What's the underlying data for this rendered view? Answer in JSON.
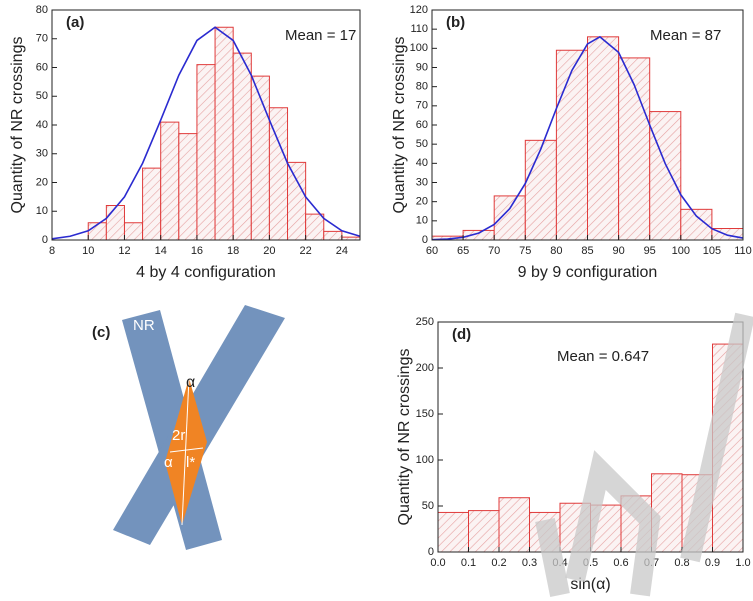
{
  "chart_data": [
    {
      "type": "histogram",
      "label": "(a)",
      "annotation": "Mean = 17",
      "xlabel": "4 by 4 configuration",
      "ylabel": "Quantity of NR crossings",
      "bins": [
        10,
        11,
        12,
        13,
        14,
        15,
        16,
        17,
        18,
        19,
        20,
        21,
        22,
        23,
        24,
        25
      ],
      "values": [
        6,
        12,
        6,
        25,
        41,
        37,
        61,
        74,
        65,
        57,
        46,
        27,
        9,
        3,
        1
      ],
      "color": "#e03a3a",
      "fit": {
        "x": [
          8,
          9,
          10,
          11,
          12,
          13,
          14,
          15,
          16,
          17,
          18,
          19,
          20,
          21,
          22,
          23,
          24,
          25
        ],
        "values": [
          0.4,
          1.3,
          3.2,
          7.5,
          15.0,
          26.7,
          41.7,
          57.3,
          69.4,
          74,
          69.4,
          57.3,
          41.7,
          26.7,
          15.0,
          7.5,
          3.2,
          1.3
        ],
        "color": "#2b2bd0"
      },
      "xlim": [
        8,
        25
      ],
      "xticks": [
        8,
        10,
        12,
        14,
        16,
        18,
        20,
        22,
        24
      ],
      "ylim": [
        0,
        80
      ],
      "yticks": [
        0,
        10,
        20,
        30,
        40,
        50,
        60,
        70,
        80
      ]
    },
    {
      "type": "histogram",
      "label": "(b)",
      "annotation": "Mean = 87",
      "xlabel": "9 by 9 configuration",
      "ylabel": "Quantity of NR crossings",
      "bins": [
        60,
        65,
        70,
        75,
        80,
        85,
        90,
        95,
        100,
        105,
        110
      ],
      "values": [
        2,
        5,
        23,
        52,
        99,
        106,
        95,
        67,
        16,
        6
      ],
      "color": "#e03a3a",
      "fit": {
        "x": [
          60,
          62.5,
          65,
          67.5,
          70,
          72.5,
          75,
          77.5,
          80,
          82.5,
          85,
          87,
          90,
          92.5,
          95,
          97.5,
          100,
          102.5,
          105,
          107.5,
          110
        ],
        "values": [
          0.2,
          0.5,
          1.4,
          3.6,
          8.1,
          16.4,
          29.5,
          47.5,
          68.6,
          88.5,
          102.3,
          106,
          97.9,
          81,
          60,
          39.8,
          23.6,
          12.5,
          5.9,
          2.5,
          1.0
        ],
        "color": "#2b2bd0"
      },
      "xlim": [
        60,
        110
      ],
      "xticks": [
        60,
        65,
        70,
        75,
        80,
        85,
        90,
        95,
        100,
        105,
        110
      ],
      "ylim": [
        0,
        120
      ],
      "yticks": [
        0,
        10,
        20,
        30,
        40,
        50,
        60,
        70,
        80,
        90,
        100,
        110,
        120
      ]
    },
    {
      "type": "histogram",
      "label": "(d)",
      "annotation": "Mean = 0.647",
      "xlabel": "sin(α)",
      "ylabel": "Quantity of NR crossings",
      "bins": [
        0,
        0.1,
        0.2,
        0.3,
        0.4,
        0.5,
        0.6,
        0.7,
        0.8,
        0.9,
        1
      ],
      "values": [
        43,
        45,
        59,
        43,
        53,
        51,
        61,
        85,
        84,
        226
      ],
      "color": "#e03a3a",
      "xlim": [
        0,
        1
      ],
      "xticks": [
        {
          "value": 0,
          "label": "0.0"
        },
        0.1,
        0.2,
        0.3,
        0.4,
        0.5,
        0.6,
        0.7,
        0.8,
        0.9,
        {
          "value": 1,
          "label": "1.0"
        }
      ],
      "ylim": [
        0,
        250
      ],
      "yticks": [
        0,
        50,
        100,
        150,
        200,
        250
      ]
    }
  ],
  "diagram": {
    "label": "(c)",
    "bar_label": "NR",
    "angle_top": "α",
    "width_label": "2r",
    "angle_inner": "α",
    "length_label": "l*"
  }
}
